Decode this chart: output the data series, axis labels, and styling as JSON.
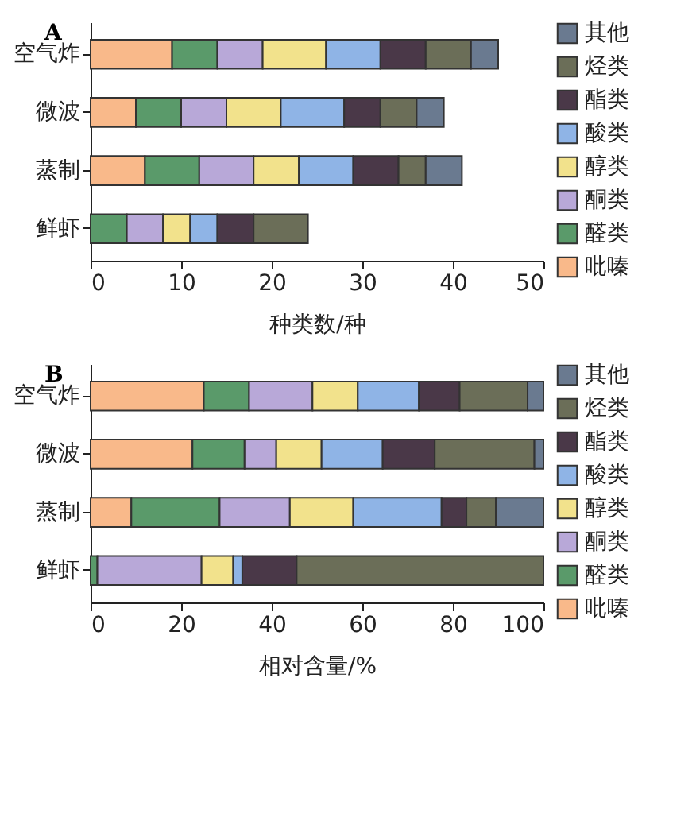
{
  "chart_data": [
    {
      "type": "bar",
      "title": "A",
      "orientation": "horizontal",
      "stacked": true,
      "xlabel": "种类数/种",
      "categories": [
        "空气炸",
        "微波",
        "蒸制",
        "鲜虾"
      ],
      "xlim": [
        0,
        50
      ],
      "xticks": [
        0,
        10,
        20,
        30,
        40,
        50
      ],
      "legend": "right",
      "grid": false,
      "series": [
        {
          "name": "吡嗪",
          "color": "#f9b98a",
          "values": [
            9,
            5,
            6,
            0
          ]
        },
        {
          "name": "醛类",
          "color": "#5a9a6a",
          "values": [
            5,
            5,
            6,
            4
          ]
        },
        {
          "name": "酮类",
          "color": "#b8a8d8",
          "values": [
            5,
            5,
            6,
            4
          ]
        },
        {
          "name": "醇类",
          "color": "#f2e28c",
          "values": [
            7,
            6,
            5,
            3
          ]
        },
        {
          "name": "酸类",
          "color": "#8fb4e6",
          "values": [
            6,
            7,
            6,
            3
          ]
        },
        {
          "name": "酯类",
          "color": "#4a3848",
          "values": [
            5,
            4,
            5,
            4
          ]
        },
        {
          "name": "烃类",
          "color": "#6b6e58",
          "values": [
            5,
            4,
            3,
            6
          ]
        },
        {
          "name": "其他",
          "color": "#6a7a90",
          "values": [
            3,
            3,
            4,
            0
          ]
        }
      ]
    },
    {
      "type": "bar",
      "title": "B",
      "orientation": "horizontal",
      "stacked": true,
      "xlabel": "相对含量/%",
      "categories": [
        "空气炸",
        "微波",
        "蒸制",
        "鲜虾"
      ],
      "xlim": [
        0,
        100
      ],
      "xticks": [
        0,
        20,
        40,
        60,
        80,
        100
      ],
      "legend": "right",
      "grid": false,
      "series": [
        {
          "name": "吡嗪",
          "color": "#f9b98a",
          "values": [
            25,
            22.5,
            9,
            0
          ]
        },
        {
          "name": "醛类",
          "color": "#5a9a6a",
          "values": [
            10,
            11.5,
            19.5,
            1.5
          ]
        },
        {
          "name": "酮类",
          "color": "#b8a8d8",
          "values": [
            14,
            7,
            15.5,
            23
          ]
        },
        {
          "name": "醇类",
          "color": "#f2e28c",
          "values": [
            10,
            10,
            14,
            7
          ]
        },
        {
          "name": "酸类",
          "color": "#8fb4e6",
          "values": [
            13.5,
            13.5,
            19.5,
            2
          ]
        },
        {
          "name": "酯类",
          "color": "#4a3848",
          "values": [
            9,
            11.5,
            5.5,
            12
          ]
        },
        {
          "name": "烃类",
          "color": "#6b6e58",
          "values": [
            15,
            22,
            6.5,
            54.5
          ]
        },
        {
          "name": "其他",
          "color": "#6a7a90",
          "values": [
            3.5,
            2,
            10.5,
            0
          ]
        }
      ]
    }
  ]
}
